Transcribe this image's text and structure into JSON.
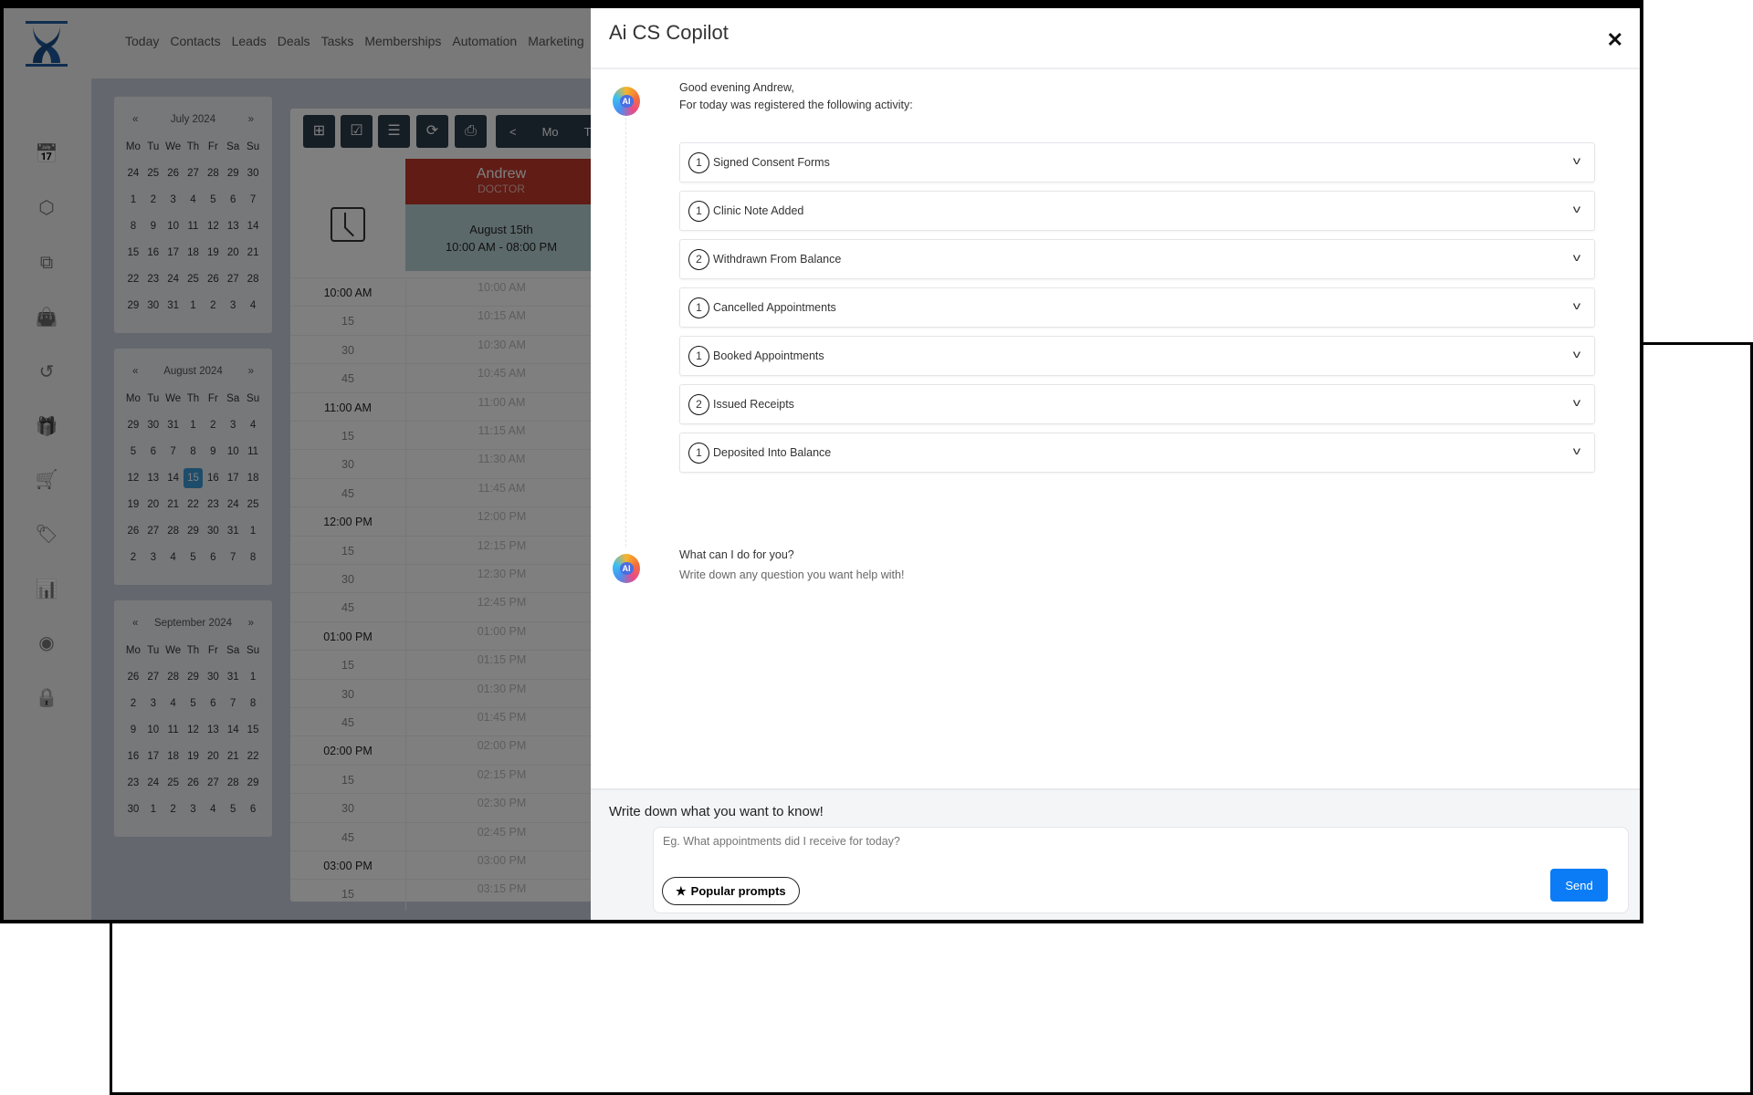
{
  "nav": {
    "menu": [
      "Today",
      "Contacts",
      "Leads",
      "Deals",
      "Tasks",
      "Memberships",
      "Automation",
      "Marketing"
    ],
    "icons": [
      "calendar-icon",
      "box-icon",
      "copy-icon",
      "bag-icon",
      "history-icon",
      "gift-icon",
      "cart-icon",
      "tag-icon",
      "report-icon",
      "user-circle-icon",
      "lock-icon"
    ]
  },
  "calendars": [
    {
      "title": "July 2024",
      "weeks": [
        [
          "24",
          "25",
          "26",
          "27",
          "28",
          "29",
          "30"
        ],
        [
          "1",
          "2",
          "3",
          "4",
          "5",
          "6",
          "7"
        ],
        [
          "8",
          "9",
          "10",
          "11",
          "12",
          "13",
          "14"
        ],
        [
          "15",
          "16",
          "17",
          "18",
          "19",
          "20",
          "21"
        ],
        [
          "22",
          "23",
          "24",
          "25",
          "26",
          "27",
          "28"
        ],
        [
          "29",
          "30",
          "31",
          "1",
          "2",
          "3",
          "4"
        ]
      ]
    },
    {
      "title": "August 2024",
      "selected": "15",
      "weeks": [
        [
          "29",
          "30",
          "31",
          "1",
          "2",
          "3",
          "4"
        ],
        [
          "5",
          "6",
          "7",
          "8",
          "9",
          "10",
          "11"
        ],
        [
          "12",
          "13",
          "14",
          "15",
          "16",
          "17",
          "18"
        ],
        [
          "19",
          "20",
          "21",
          "22",
          "23",
          "24",
          "25"
        ],
        [
          "26",
          "27",
          "28",
          "29",
          "30",
          "31",
          "1"
        ],
        [
          "2",
          "3",
          "4",
          "5",
          "6",
          "7",
          "8"
        ]
      ]
    },
    {
      "title": "September 2024",
      "weeks": [
        [
          "26",
          "27",
          "28",
          "29",
          "30",
          "31",
          "1"
        ],
        [
          "2",
          "3",
          "4",
          "5",
          "6",
          "7",
          "8"
        ],
        [
          "9",
          "10",
          "11",
          "12",
          "13",
          "14",
          "15"
        ],
        [
          "16",
          "17",
          "18",
          "19",
          "20",
          "21",
          "22"
        ],
        [
          "23",
          "24",
          "25",
          "26",
          "27",
          "28",
          "29"
        ],
        [
          "30",
          "1",
          "2",
          "3",
          "4",
          "5",
          "6"
        ]
      ]
    }
  ],
  "weekdays": [
    "Mo",
    "Tu",
    "We",
    "Th",
    "Fr",
    "Sa",
    "Su"
  ],
  "cal_prev": "«",
  "cal_next": "»",
  "schedule": {
    "nav_prev": "<",
    "nav_days": [
      "Mo",
      "Tu"
    ],
    "doctor_name": "Andrew",
    "doctor_role": "DOCTOR",
    "date": "August 15th",
    "hours": "10:00 AM - 08:00 PM",
    "rows": [
      [
        "10:00 AM",
        "10:00 AM"
      ],
      [
        "15",
        "10:15 AM"
      ],
      [
        "30",
        "10:30 AM"
      ],
      [
        "45",
        "10:45 AM"
      ],
      [
        "11:00 AM",
        "11:00 AM"
      ],
      [
        "15",
        "11:15 AM"
      ],
      [
        "30",
        "11:30 AM"
      ],
      [
        "45",
        "11:45 AM"
      ],
      [
        "12:00 PM",
        "12:00 PM"
      ],
      [
        "15",
        "12:15 PM"
      ],
      [
        "30",
        "12:30 PM"
      ],
      [
        "45",
        "12:45 PM"
      ],
      [
        "01:00 PM",
        "01:00 PM"
      ],
      [
        "15",
        "01:15 PM"
      ],
      [
        "30",
        "01:30 PM"
      ],
      [
        "45",
        "01:45 PM"
      ],
      [
        "02:00 PM",
        "02:00 PM"
      ],
      [
        "15",
        "02:15 PM"
      ],
      [
        "30",
        "02:30 PM"
      ],
      [
        "45",
        "02:45 PM"
      ],
      [
        "03:00 PM",
        "03:00 PM"
      ],
      [
        "15",
        "03:15 PM"
      ]
    ]
  },
  "panel": {
    "title": "Ai CS Copilot",
    "close": "✕",
    "ai_label": "AI",
    "greeting": "Good evening Andrew,",
    "intro": "For today was registered the following activity:",
    "activities": [
      {
        "count": "1",
        "label": "Signed Consent Forms"
      },
      {
        "count": "1",
        "label": "Clinic Note Added"
      },
      {
        "count": "2",
        "label": "Withdrawn From Balance"
      },
      {
        "count": "1",
        "label": "Cancelled Appointments"
      },
      {
        "count": "1",
        "label": "Booked Appointments"
      },
      {
        "count": "2",
        "label": "Issued Receipts"
      },
      {
        "count": "1",
        "label": "Deposited Into Balance"
      }
    ],
    "question": "What can I do for you?",
    "question_sub": "Write down any question you want help with!",
    "footer_title": "Write down what you want to know!",
    "input_placeholder": "Eg. What appointments did I receive for today?",
    "input_value": "",
    "popular_prompts": "Popular prompts",
    "send": "Send"
  },
  "colors": {
    "accent": "#0b7cf5",
    "doctor": "#c0392b",
    "selected_day": "#3d9bd8"
  }
}
